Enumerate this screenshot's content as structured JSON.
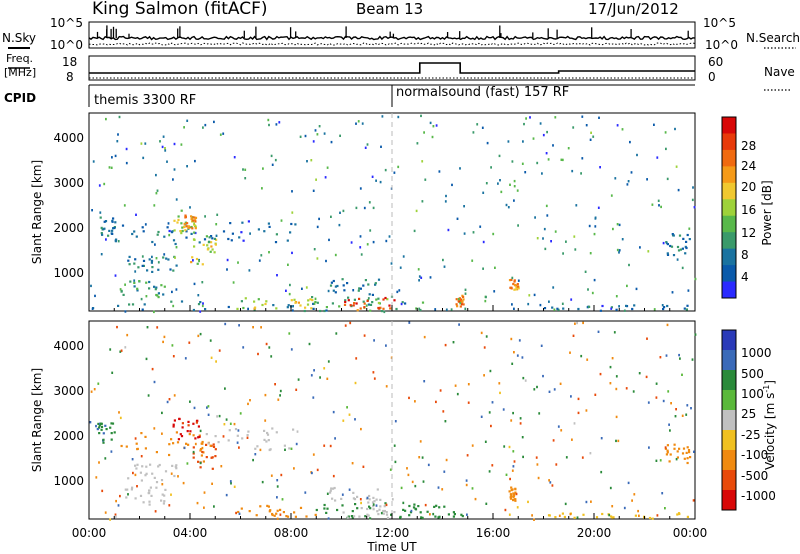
{
  "header": {
    "station": "King Salmon (fitACF)",
    "beam": "Beam 13",
    "date": "17/Jun/2012"
  },
  "panels": {
    "nsky_label": "N.Sky",
    "nsearch_label": "N.Search",
    "freq_label_line1": "Freq.",
    "freq_label_line2": "[MHz]",
    "nave_label": "Nave",
    "cpid_label": "CPID",
    "nsky_ticks": [
      "10^5",
      "10^0"
    ],
    "nsearch_ticks": [
      "10^5",
      "10^0"
    ],
    "freq_ticks": [
      "18",
      "8"
    ],
    "nave_ticks": [
      "60",
      "0"
    ],
    "cpid_segments": [
      {
        "start_hour": 0,
        "end_hour": 12,
        "label": "themis 3300 RF"
      },
      {
        "start_hour": 12,
        "end_hour": 24,
        "label": "normalsound (fast) 157 RF"
      }
    ],
    "nave_pulse": {
      "start_hour": 13.1,
      "end_hour": 14.7
    }
  },
  "power_colorbar": {
    "title": "Power [dB]",
    "ticks": [
      "28",
      "24",
      "20",
      "16",
      "12",
      "8",
      "4"
    ],
    "colors": [
      "#2a2aff",
      "#0a5aaa",
      "#1a73a0",
      "#3a9a6a",
      "#58b84a",
      "#9ed23a",
      "#f0c830",
      "#f59a18",
      "#f06a10",
      "#e83a0a",
      "#d80808"
    ]
  },
  "velocity_colorbar": {
    "title": "Velocity [m s",
    "title_sup": "-1",
    "title_end": "]",
    "ticks": [
      "1000",
      "500",
      "100",
      "25",
      "-25",
      "-100",
      "-500",
      "-1000"
    ],
    "colors": [
      "#2a3ab8",
      "#3a6ab8",
      "#2a8a3a",
      "#5ab83a",
      "#c0c0c0",
      "#f0c020",
      "#f08a10",
      "#e84a0a",
      "#d80808"
    ]
  },
  "axes": {
    "ylabel": "Slant Range [km]",
    "xlabel": "Time UT",
    "yticks": [
      "1000",
      "2000",
      "3000",
      "4000"
    ],
    "xticks": [
      "00:00",
      "04:00",
      "08:00",
      "12:00",
      "16:00",
      "20:00",
      "00:00"
    ]
  },
  "chart_data": [
    {
      "type": "heatmap",
      "name": "power",
      "xlim_hours": [
        0,
        24
      ],
      "ylim_km": [
        180,
        4500
      ],
      "scale": "Power [dB]",
      "regions": [
        {
          "t0": 0.3,
          "t1": 1.0,
          "r0": 1800,
          "r1": 2300,
          "value": 6
        },
        {
          "t0": 1.0,
          "t1": 4.5,
          "r0": 1600,
          "r1": 2100,
          "value": 5
        },
        {
          "t0": 3.2,
          "t1": 4.4,
          "r0": 1900,
          "r1": 2400,
          "value": 14
        },
        {
          "t0": 3.6,
          "t1": 4.2,
          "r0": 2000,
          "r1": 2300,
          "value": 22
        },
        {
          "t0": 4.0,
          "t1": 5.0,
          "r0": 1200,
          "r1": 1900,
          "value": 16
        },
        {
          "t0": 4.5,
          "t1": 8.2,
          "r0": 1700,
          "r1": 2200,
          "value": 5
        },
        {
          "t0": 1.5,
          "t1": 3.5,
          "r0": 1000,
          "r1": 1400,
          "value": 6
        },
        {
          "t0": 1.2,
          "t1": 3.0,
          "r0": 500,
          "r1": 900,
          "value": 10
        },
        {
          "t0": 0.0,
          "t1": 12.5,
          "r0": 200,
          "r1": 420,
          "value": 6
        },
        {
          "t0": 5.8,
          "t1": 9.0,
          "r0": 250,
          "r1": 500,
          "value": 16
        },
        {
          "t0": 8.5,
          "t1": 13.5,
          "r0": 200,
          "r1": 550,
          "value": 12
        },
        {
          "t0": 10.0,
          "t1": 12.2,
          "r0": 200,
          "r1": 500,
          "value": 26
        },
        {
          "t0": 9.5,
          "t1": 11.5,
          "r0": 550,
          "r1": 900,
          "value": 6
        },
        {
          "t0": 14.5,
          "t1": 14.8,
          "r0": 300,
          "r1": 550,
          "value": 24
        },
        {
          "t0": 16.6,
          "t1": 17.0,
          "r0": 600,
          "r1": 900,
          "value": 22
        },
        {
          "t0": 18.0,
          "t1": 24.0,
          "r0": 200,
          "r1": 330,
          "value": 5
        },
        {
          "t0": 22.8,
          "t1": 23.8,
          "r0": 1400,
          "r1": 1900,
          "value": 6
        }
      ]
    },
    {
      "type": "heatmap",
      "name": "velocity",
      "xlim_hours": [
        0,
        24
      ],
      "ylim_km": [
        180,
        4500
      ],
      "scale": "Velocity [m s-1]",
      "regions": [
        {
          "t0": 0.3,
          "t1": 1.0,
          "r0": 1800,
          "r1": 2300,
          "value": 400
        },
        {
          "t0": 1.0,
          "t1": 4.5,
          "r0": 1600,
          "r1": 2100,
          "value": -300
        },
        {
          "t0": 3.2,
          "t1": 4.4,
          "r0": 1900,
          "r1": 2400,
          "value": -1200
        },
        {
          "t0": 4.0,
          "t1": 5.0,
          "r0": 1200,
          "r1": 1900,
          "value": -600
        },
        {
          "t0": 4.5,
          "t1": 8.2,
          "r0": 1700,
          "r1": 2200,
          "value": 0
        },
        {
          "t0": 1.5,
          "t1": 3.5,
          "r0": 1000,
          "r1": 1400,
          "value": 0
        },
        {
          "t0": 1.2,
          "t1": 3.0,
          "r0": 500,
          "r1": 900,
          "value": 0
        },
        {
          "t0": 5.8,
          "t1": 9.0,
          "r0": 250,
          "r1": 500,
          "value": -300
        },
        {
          "t0": 8.5,
          "t1": 13.5,
          "r0": 200,
          "r1": 550,
          "value": 200
        },
        {
          "t0": 10.0,
          "t1": 12.2,
          "r0": 200,
          "r1": 500,
          "value": 0
        },
        {
          "t0": 9.5,
          "t1": 11.5,
          "r0": 550,
          "r1": 900,
          "value": 0
        },
        {
          "t0": 12.2,
          "t1": 15.0,
          "r0": 200,
          "r1": 500,
          "value": 300
        },
        {
          "t0": 16.6,
          "t1": 17.0,
          "r0": 600,
          "r1": 900,
          "value": -200
        },
        {
          "t0": 18.0,
          "t1": 24.0,
          "r0": 200,
          "r1": 330,
          "value": -60
        },
        {
          "t0": 22.8,
          "t1": 23.8,
          "r0": 1400,
          "r1": 1900,
          "value": -300
        }
      ]
    }
  ]
}
